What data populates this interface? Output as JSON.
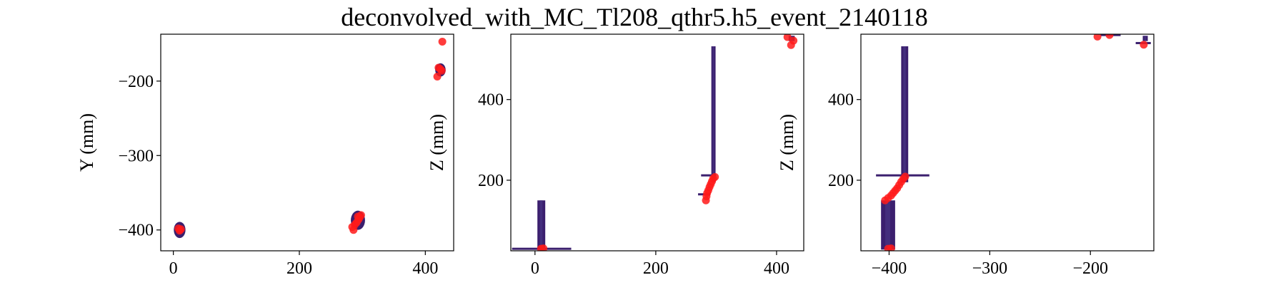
{
  "figure": {
    "title": "deconvolved_with_MC_Tl208_qthr5.h5_event_2140118",
    "colors": {
      "hits": "#ff1a1a",
      "hits_faint": "#ff6b6b",
      "density_dark": "#3b1f6e",
      "density_mid": "#46307e",
      "density_light": "#4a6fa0"
    }
  },
  "chart_data": [
    {
      "type": "scatter",
      "panel": "xy",
      "title": "",
      "xlabel": "",
      "ylabel": "Y (mm)",
      "xlim": [
        -20,
        445
      ],
      "ylim": [
        -428,
        -137
      ],
      "xticks": [
        0,
        200,
        400
      ],
      "xtick_labels": [
        "0",
        "200",
        "400"
      ],
      "yticks": [
        -400,
        -300,
        -200
      ],
      "ytick_labels": [
        "−400",
        "−300",
        "−200"
      ],
      "blobs": [
        {
          "x": 10,
          "y": -400,
          "w": 14,
          "h": 18
        },
        {
          "x": 293,
          "y": -387,
          "w": 18,
          "h": 22
        },
        {
          "x": 424,
          "y": -185,
          "w": 12,
          "h": 14
        }
      ],
      "points": [
        {
          "x": 8,
          "y": -398
        },
        {
          "x": 10,
          "y": -401
        },
        {
          "x": 12,
          "y": -399
        },
        {
          "x": 284,
          "y": -396
        },
        {
          "x": 288,
          "y": -393
        },
        {
          "x": 291,
          "y": -390
        },
        {
          "x": 294,
          "y": -386
        },
        {
          "x": 296,
          "y": -383
        },
        {
          "x": 298,
          "y": -380
        },
        {
          "x": 293,
          "y": -382
        },
        {
          "x": 286,
          "y": -400
        },
        {
          "x": 421,
          "y": -182
        },
        {
          "x": 424,
          "y": -184
        },
        {
          "x": 426,
          "y": -186
        },
        {
          "x": 419,
          "y": -194
        },
        {
          "x": 427,
          "y": -147
        }
      ]
    },
    {
      "type": "scatter",
      "panel": "xz",
      "title": "",
      "xlabel": "",
      "ylabel": "Z (mm)",
      "xlim": [
        -40,
        445
      ],
      "ylim": [
        25,
        562
      ],
      "xticks": [
        0,
        200,
        400
      ],
      "xtick_labels": [
        "0",
        "200",
        "400"
      ],
      "yticks": [
        200,
        400
      ],
      "ytick_labels": [
        "200",
        "400"
      ],
      "bars": [
        {
          "x0": 4,
          "x1": 17,
          "y0": 28,
          "y1": 150
        },
        {
          "x0": 292,
          "x1": 299,
          "y0": 195,
          "y1": 532
        },
        {
          "x0": 420,
          "x1": 430,
          "y0": 545,
          "y1": 558
        }
      ],
      "strips": [
        {
          "x0": -38,
          "x1": 60,
          "y": 30
        },
        {
          "x0": 275,
          "x1": 300,
          "y": 212
        },
        {
          "x0": 270,
          "x1": 290,
          "y": 165
        }
      ],
      "points": [
        {
          "x": 283,
          "y": 150
        },
        {
          "x": 284,
          "y": 160
        },
        {
          "x": 285,
          "y": 168
        },
        {
          "x": 287,
          "y": 175
        },
        {
          "x": 289,
          "y": 183
        },
        {
          "x": 291,
          "y": 190
        },
        {
          "x": 293,
          "y": 197
        },
        {
          "x": 295,
          "y": 204
        },
        {
          "x": 298,
          "y": 208
        },
        {
          "x": 10,
          "y": 30
        },
        {
          "x": 14,
          "y": 31
        },
        {
          "x": 418,
          "y": 555
        },
        {
          "x": 424,
          "y": 535
        },
        {
          "x": 428,
          "y": 546
        }
      ]
    },
    {
      "type": "scatter",
      "panel": "yz",
      "title": "",
      "xlabel": "",
      "ylabel": "Z (mm)",
      "xlim": [
        -428,
        -137
      ],
      "ylim": [
        25,
        562
      ],
      "xticks": [
        -400,
        -300,
        -200
      ],
      "xtick_labels": [
        "−400",
        "−300",
        "−200"
      ],
      "yticks": [
        200,
        400
      ],
      "ytick_labels": [
        "200",
        "400"
      ],
      "bars": [
        {
          "x0": -408,
          "x1": -394,
          "y0": 28,
          "y1": 150
        },
        {
          "x0": -388,
          "x1": -381,
          "y0": 195,
          "y1": 532
        },
        {
          "x0": -148,
          "x1": -143,
          "y0": 545,
          "y1": 558
        }
      ],
      "strips": [
        {
          "x0": -413,
          "x1": -360,
          "y": 212
        },
        {
          "x0": -190,
          "x1": -170,
          "y": 560
        },
        {
          "x0": -155,
          "x1": -140,
          "y": 540
        }
      ],
      "points": [
        {
          "x": -404,
          "y": 150
        },
        {
          "x": -401,
          "y": 156
        },
        {
          "x": -398,
          "y": 162
        },
        {
          "x": -396,
          "y": 168
        },
        {
          "x": -394,
          "y": 174
        },
        {
          "x": -392,
          "y": 180
        },
        {
          "x": -390,
          "y": 188
        },
        {
          "x": -388,
          "y": 196
        },
        {
          "x": -386,
          "y": 203
        },
        {
          "x": -384,
          "y": 209
        },
        {
          "x": -401,
          "y": 30
        },
        {
          "x": -398,
          "y": 31
        },
        {
          "x": -193,
          "y": 556
        },
        {
          "x": -181,
          "y": 560
        },
        {
          "x": -147,
          "y": 536
        }
      ]
    }
  ]
}
